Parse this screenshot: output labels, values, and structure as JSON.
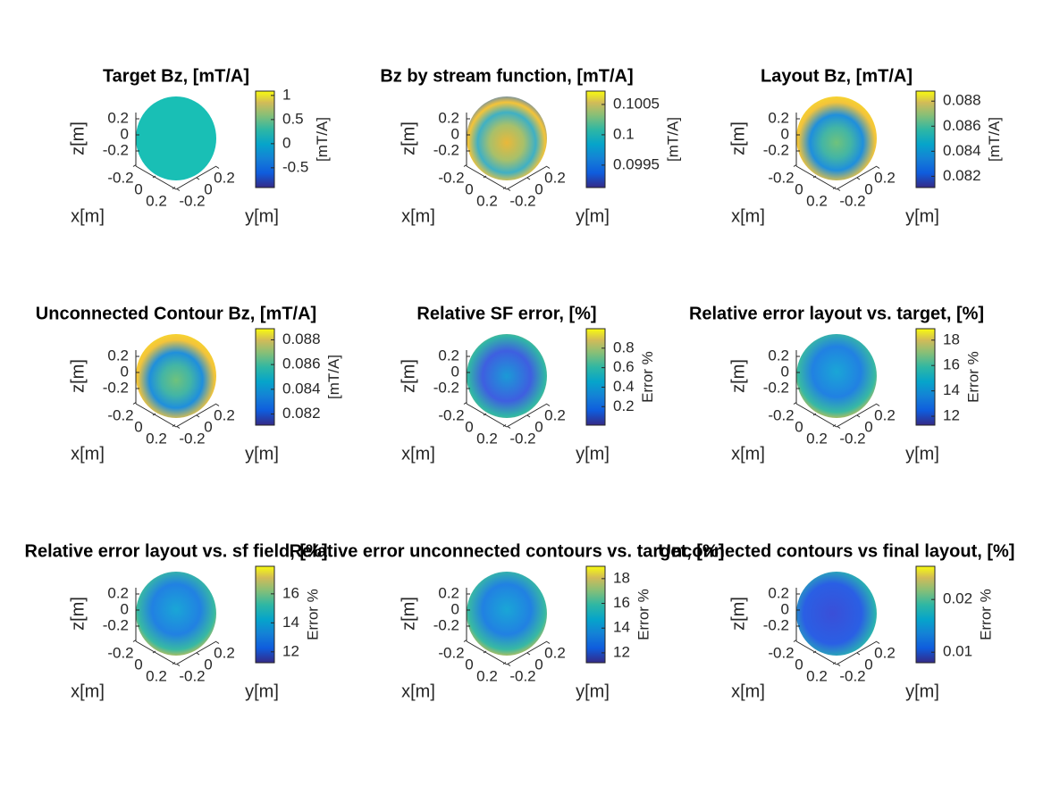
{
  "chart_data": [
    {
      "type": "surface",
      "title": "Target Bz, [mT/A]",
      "xlabel": "x[m]",
      "ylabel": "y[m]",
      "zlabel": "z[m]",
      "xticks": [
        -0.2,
        0,
        0.2
      ],
      "yticks": [
        -0.2,
        0,
        0.2
      ],
      "zticks": [
        -0.2,
        0,
        0.2
      ],
      "clim": [
        -0.91,
        1.09
      ],
      "cticks": [
        -0.5,
        0,
        0.5,
        1
      ],
      "clabel": "[mT/A]"
    },
    {
      "type": "surface",
      "title": "Bz by stream function, [mT/A]",
      "xlabel": "x[m]",
      "ylabel": "y[m]",
      "zlabel": "z[m]",
      "xticks": [
        -0.2,
        0,
        0.2
      ],
      "yticks": [
        -0.2,
        0,
        0.2
      ],
      "zticks": [
        -0.2,
        0,
        0.2
      ],
      "clim": [
        0.09913,
        0.10072
      ],
      "cticks": [
        0.0995,
        0.1,
        0.1005
      ],
      "clabel": "[mT/A]"
    },
    {
      "type": "surface",
      "title": "Layout Bz, [mT/A]",
      "xlabel": "x[m]",
      "ylabel": "y[m]",
      "zlabel": "z[m]",
      "xticks": [
        -0.2,
        0,
        0.2
      ],
      "yticks": [
        -0.2,
        0,
        0.2
      ],
      "zticks": [
        -0.2,
        0,
        0.2
      ],
      "clim": [
        0.0811,
        0.0888
      ],
      "cticks": [
        0.082,
        0.084,
        0.086,
        0.088
      ],
      "clabel": "[mT/A]"
    },
    {
      "type": "surface",
      "title": "Unconnected Contour Bz, [mT/A]",
      "xlabel": "x[m]",
      "ylabel": "y[m]",
      "zlabel": "z[m]",
      "xticks": [
        -0.2,
        0,
        0.2
      ],
      "yticks": [
        -0.2,
        0,
        0.2
      ],
      "zticks": [
        -0.2,
        0,
        0.2
      ],
      "clim": [
        0.0811,
        0.0889
      ],
      "cticks": [
        0.082,
        0.084,
        0.086,
        0.088
      ],
      "clabel": "[mT/A]"
    },
    {
      "type": "surface",
      "title": "Relative SF error, [%]",
      "xlabel": "x[m]",
      "ylabel": "y[m]",
      "zlabel": "z[m]",
      "xticks": [
        -0.2,
        0,
        0.2
      ],
      "yticks": [
        -0.2,
        0,
        0.2
      ],
      "zticks": [
        -0.2,
        0,
        0.2
      ],
      "clim": [
        0.01,
        1.0
      ],
      "cticks": [
        0.2,
        0.4,
        0.6,
        0.8
      ],
      "clabel": "Error %"
    },
    {
      "type": "surface",
      "title": "Relative error layout vs. target, [%]",
      "xlabel": "x[m]",
      "ylabel": "y[m]",
      "zlabel": "z[m]",
      "xticks": [
        -0.2,
        0,
        0.2
      ],
      "yticks": [
        -0.2,
        0,
        0.2
      ],
      "zticks": [
        -0.2,
        0,
        0.2
      ],
      "clim": [
        11.3,
        18.9
      ],
      "cticks": [
        12,
        14,
        16,
        18
      ],
      "clabel": "Error %"
    },
    {
      "type": "surface",
      "title": "Relative error layout vs. sf field, [%]",
      "xlabel": "x[m]",
      "ylabel": "y[m]",
      "zlabel": "z[m]",
      "xticks": [
        -0.2,
        0,
        0.2
      ],
      "yticks": [
        -0.2,
        0,
        0.2
      ],
      "zticks": [
        -0.2,
        0,
        0.2
      ],
      "clim": [
        11.25,
        17.9
      ],
      "cticks": [
        12,
        14,
        16
      ],
      "clabel": "Error %"
    },
    {
      "type": "surface",
      "title": "Relative error unconnected contours vs. target, [%]",
      "xlabel": "x[m]",
      "ylabel": "y[m]",
      "zlabel": "z[m]",
      "xticks": [
        -0.2,
        0,
        0.2
      ],
      "yticks": [
        -0.2,
        0,
        0.2
      ],
      "zticks": [
        -0.2,
        0,
        0.2
      ],
      "clim": [
        11.2,
        19.0
      ],
      "cticks": [
        12,
        14,
        16,
        18
      ],
      "clabel": "Error %"
    },
    {
      "type": "surface",
      "title": "Unconnected contours vs final layout, [%]",
      "xlabel": "x[m]",
      "ylabel": "y[m]",
      "zlabel": "z[m]",
      "xticks": [
        -0.2,
        0,
        0.2
      ],
      "yticks": [
        -0.2,
        0,
        0.2
      ],
      "zticks": [
        -0.2,
        0,
        0.2
      ],
      "clim": [
        0.008,
        0.0263
      ],
      "cticks": [
        0.01,
        0.02
      ],
      "clabel": "Error %"
    }
  ]
}
